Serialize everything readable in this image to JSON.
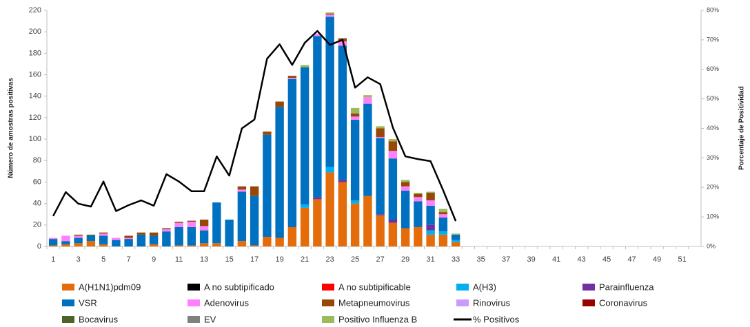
{
  "chart_data": {
    "type": "bar",
    "stacked": true,
    "y_axis_title": "Número de amostras positivas",
    "y2_axis_title": "Porcentaje de Positividad",
    "categories": [
      1,
      null,
      3,
      null,
      5,
      null,
      7,
      null,
      9,
      null,
      11,
      null,
      13,
      null,
      15,
      null,
      17,
      null,
      19,
      null,
      21,
      null,
      23,
      null,
      25,
      null,
      27,
      null,
      29,
      null,
      31,
      null,
      33,
      null,
      35,
      null,
      37,
      null,
      39,
      null,
      41,
      null,
      43,
      null,
      45,
      null,
      47,
      null,
      49,
      null,
      51,
      null
    ],
    "ylim": [
      0,
      220
    ],
    "yticks": [
      0,
      20,
      40,
      60,
      80,
      100,
      120,
      140,
      160,
      180,
      200,
      220
    ],
    "y2lim": [
      0,
      80
    ],
    "y2ticks": [
      {
        "value": 0,
        "label": "0%"
      },
      {
        "value": 10,
        "label": "10%"
      },
      {
        "value": 20,
        "label": "20%"
      },
      {
        "value": 30,
        "label": "30%"
      },
      {
        "value": 40,
        "label": "40%"
      },
      {
        "value": 50,
        "label": "50%"
      },
      {
        "value": 60,
        "label": "60%"
      },
      {
        "value": 70,
        "label": "70%"
      },
      {
        "value": 80,
        "label": "80%"
      }
    ],
    "grid": false,
    "legend": "bottom",
    "series": [
      {
        "name": "A(H1N1)pdm09",
        "color": "#e46c0a",
        "values": [
          1,
          2,
          3,
          5,
          2,
          0,
          0,
          0,
          2,
          0,
          1,
          1,
          3,
          3,
          0,
          5,
          1,
          9,
          8,
          18,
          36,
          44,
          69,
          60,
          40,
          47,
          29,
          22,
          17,
          18,
          11,
          11,
          4,
          null,
          null,
          null,
          null,
          null,
          null,
          null,
          null,
          null,
          null,
          null,
          null,
          null,
          null,
          null,
          null,
          null,
          null,
          null
        ]
      },
      {
        "name": "A no subtipificado",
        "color": "#000000",
        "values": [
          0,
          0,
          0,
          0,
          0,
          0,
          0,
          0,
          0,
          0,
          0,
          0,
          0,
          0,
          0,
          0,
          0,
          0,
          0,
          0,
          0,
          0,
          0,
          0,
          0,
          0,
          0,
          0,
          0,
          0,
          0,
          0,
          0,
          null,
          null,
          null,
          null,
          null,
          null,
          null,
          null,
          null,
          null,
          null,
          null,
          null,
          null,
          null,
          null,
          null,
          null,
          null
        ]
      },
      {
        "name": "A no subtipificable",
        "color": "#ff0000",
        "values": [
          0,
          0,
          0,
          0,
          0,
          0,
          0,
          0,
          0,
          0,
          0,
          0,
          0,
          0,
          0,
          0,
          0,
          0,
          0,
          0,
          0,
          0,
          0,
          0,
          0,
          0,
          0,
          0,
          0,
          0,
          0,
          0,
          0,
          null,
          null,
          null,
          null,
          null,
          null,
          null,
          null,
          null,
          null,
          null,
          null,
          null,
          null,
          null,
          null,
          null,
          null,
          null
        ]
      },
      {
        "name": "A(H3)",
        "color": "#00b0f0",
        "values": [
          0,
          0,
          0,
          0,
          0,
          0,
          0,
          0,
          0,
          0,
          0,
          0,
          0,
          0,
          0,
          0,
          0,
          0,
          0,
          0,
          3,
          0,
          5,
          0,
          3,
          0,
          0,
          0,
          0,
          0,
          4,
          3,
          2,
          null,
          null,
          null,
          null,
          null,
          null,
          null,
          null,
          null,
          null,
          null,
          null,
          null,
          null,
          null,
          null,
          null,
          null,
          null
        ]
      },
      {
        "name": "Parainfluenza",
        "color": "#7030a0",
        "values": [
          0,
          0,
          0,
          0,
          0,
          0,
          0,
          0,
          0,
          0,
          0,
          0,
          0,
          0,
          0,
          0,
          0,
          0,
          0,
          0,
          0,
          2,
          0,
          2,
          0,
          0,
          1,
          3,
          0,
          0,
          5,
          0,
          0,
          null,
          null,
          null,
          null,
          null,
          null,
          null,
          null,
          null,
          null,
          null,
          null,
          null,
          null,
          null,
          null,
          null,
          null,
          null
        ]
      },
      {
        "name": "VSR",
        "color": "#0070c0",
        "values": [
          6,
          3,
          5,
          5,
          8,
          6,
          7,
          11,
          8,
          14,
          17,
          17,
          12,
          38,
          25,
          46,
          46,
          95,
          122,
          138,
          128,
          150,
          140,
          125,
          75,
          86,
          71,
          57,
          35,
          24,
          18,
          13,
          5,
          null,
          null,
          null,
          null,
          null,
          null,
          null,
          null,
          null,
          null,
          null,
          null,
          null,
          null,
          null,
          null,
          null,
          null,
          null
        ]
      },
      {
        "name": "Adenovirus",
        "color": "#ff80ff",
        "values": [
          1,
          5,
          2,
          0,
          2,
          2,
          1,
          0,
          0,
          2,
          4,
          5,
          4,
          0,
          0,
          2,
          0,
          0,
          0,
          1,
          0,
          2,
          2,
          4,
          3,
          6,
          1,
          7,
          4,
          4,
          5,
          3,
          0,
          null,
          null,
          null,
          null,
          null,
          null,
          null,
          null,
          null,
          null,
          null,
          null,
          null,
          null,
          null,
          null,
          null,
          null,
          null
        ]
      },
      {
        "name": "Metapneumovirus",
        "color": "#974706",
        "values": [
          0,
          0,
          1,
          0,
          1,
          0,
          2,
          2,
          3,
          1,
          1,
          1,
          6,
          0,
          0,
          3,
          9,
          3,
          5,
          2,
          0,
          0,
          1,
          3,
          3,
          0,
          8,
          9,
          4,
          3,
          7,
          2,
          0,
          null,
          null,
          null,
          null,
          null,
          null,
          null,
          null,
          null,
          null,
          null,
          null,
          null,
          null,
          null,
          null,
          null,
          null,
          null
        ]
      },
      {
        "name": "Rinovirus",
        "color": "#cc99ff",
        "values": [
          0,
          0,
          0,
          0,
          0,
          0,
          0,
          0,
          0,
          0,
          0,
          0,
          0,
          0,
          0,
          0,
          0,
          0,
          0,
          0,
          0,
          0,
          0,
          0,
          0,
          0,
          0,
          0,
          0,
          0,
          0,
          0,
          0,
          null,
          null,
          null,
          null,
          null,
          null,
          null,
          null,
          null,
          null,
          null,
          null,
          null,
          null,
          null,
          null,
          null,
          null,
          null
        ]
      },
      {
        "name": "Coronavirus",
        "color": "#990000",
        "values": [
          0,
          0,
          0,
          0,
          0,
          0,
          0,
          0,
          0,
          0,
          0,
          0,
          0,
          0,
          0,
          0,
          0,
          0,
          0,
          0,
          0,
          0,
          0,
          0,
          0,
          0,
          0,
          0,
          0,
          0,
          0,
          0,
          0,
          null,
          null,
          null,
          null,
          null,
          null,
          null,
          null,
          null,
          null,
          null,
          null,
          null,
          null,
          null,
          null,
          null,
          null,
          null
        ]
      },
      {
        "name": "Bocavirus",
        "color": "#4f6228",
        "values": [
          0,
          0,
          0,
          1,
          0,
          0,
          0,
          0,
          0,
          0,
          0,
          0,
          0,
          0,
          0,
          0,
          0,
          0,
          0,
          0,
          0,
          0,
          0,
          0,
          0,
          0,
          0,
          0,
          0,
          0,
          0,
          0,
          0,
          null,
          null,
          null,
          null,
          null,
          null,
          null,
          null,
          null,
          null,
          null,
          null,
          null,
          null,
          null,
          null,
          null,
          null,
          null
        ]
      },
      {
        "name": "EV",
        "color": "#808080",
        "values": [
          0,
          0,
          0,
          0,
          0,
          0,
          0,
          0,
          0,
          0,
          0,
          0,
          0,
          0,
          0,
          0,
          0,
          0,
          0,
          0,
          0,
          0,
          0,
          0,
          0,
          0,
          0,
          0,
          0,
          0,
          0,
          0,
          0,
          null,
          null,
          null,
          null,
          null,
          null,
          null,
          null,
          null,
          null,
          null,
          null,
          null,
          null,
          null,
          null,
          null,
          null,
          null
        ]
      },
      {
        "name": "Positivo Influenza  B",
        "color": "#9bbb59",
        "values": [
          0,
          0,
          0,
          0,
          0,
          0,
          0,
          0,
          0,
          0,
          0,
          0,
          0,
          0,
          0,
          0,
          0,
          0,
          0,
          0,
          2,
          0,
          1,
          0,
          5,
          2,
          2,
          2,
          2,
          1,
          1,
          3,
          1,
          null,
          null,
          null,
          null,
          null,
          null,
          null,
          null,
          null,
          null,
          null,
          null,
          null,
          null,
          null,
          null,
          null,
          null,
          null
        ]
      },
      {
        "name": "% Positivos",
        "color": "#000000",
        "type": "line",
        "axis": "y2",
        "values": [
          10.3,
          18.4,
          14.5,
          13.5,
          22,
          12,
          14,
          15.6,
          13.8,
          24.5,
          22,
          18.7,
          18.7,
          30.5,
          24,
          40,
          43,
          63.6,
          68.5,
          61.5,
          69,
          73,
          68.3,
          70,
          53.8,
          57.3,
          55,
          40.3,
          30.5,
          29.6,
          28.9,
          19,
          8.6,
          null,
          null,
          null,
          null,
          null,
          null,
          null,
          null,
          null,
          null,
          null,
          null,
          null,
          null,
          null,
          null,
          null,
          null,
          null
        ]
      }
    ]
  }
}
